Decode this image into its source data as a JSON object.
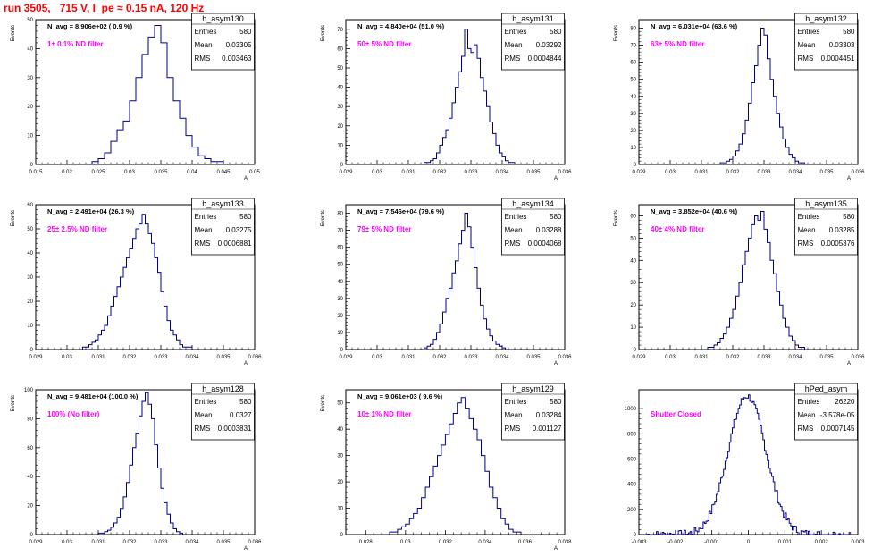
{
  "page_title": "run 3505,   715 V, I_pe ≈ 0.15 nA, 120 Hz",
  "colors": {
    "hist": "#00008b",
    "note": "#ff00ff",
    "title": "#ff0000",
    "axis": "#000000"
  },
  "stats_labels": {
    "entries": "Entries",
    "mean": "Mean",
    "rms": "RMS"
  },
  "chart_data": [
    {
      "type": "histogram",
      "title": "h_asym130",
      "header": "N_avg = 8.906e+02 ( 0.9 %)",
      "note": "1± 0.1% ND filter",
      "ylabel": "Events",
      "xlabel": "A",
      "xlim": [
        0.015,
        0.05
      ],
      "ylim": [
        0,
        50
      ],
      "xticks": [
        "0.015",
        "0.02",
        "0.025",
        "0.03",
        "0.035",
        "0.04",
        "0.045",
        "0.05"
      ],
      "yticks": [
        "0",
        "10",
        "20",
        "30",
        "40",
        "50"
      ],
      "stats": {
        "entries": "580",
        "mean": "0.03305",
        "rms": "0.003463"
      },
      "bins": [
        0.024,
        0.025,
        0.026,
        0.027,
        0.028,
        0.029,
        0.03,
        0.031,
        0.032,
        0.033,
        0.034,
        0.035,
        0.036,
        0.037,
        0.038,
        0.039,
        0.04,
        0.041,
        0.042,
        0.043,
        0.044,
        0.045
      ],
      "counts": [
        1,
        2,
        4,
        8,
        12,
        15,
        22,
        30,
        38,
        44,
        48,
        42,
        30,
        22,
        16,
        10,
        6,
        3,
        2,
        1,
        1
      ]
    },
    {
      "type": "histogram",
      "title": "h_asym131",
      "header": "N_avg = 4.840e+04 (51.0 %)",
      "note": "50± 5% ND filter",
      "ylabel": "Events",
      "xlabel": "A",
      "xlim": [
        0.029,
        0.036
      ],
      "ylim": [
        0,
        75
      ],
      "xticks": [
        "0.029",
        "0.03",
        "0.031",
        "0.032",
        "0.033",
        "0.034",
        "0.035",
        "0.036"
      ],
      "yticks": [
        "0",
        "10",
        "20",
        "30",
        "40",
        "50",
        "60",
        "70"
      ],
      "stats": {
        "entries": "580",
        "mean": "0.03292",
        "rms": "0.0004844"
      },
      "bins": [
        0.0315,
        0.0316,
        0.0317,
        0.0318,
        0.0319,
        0.032,
        0.0321,
        0.0322,
        0.0323,
        0.0324,
        0.0325,
        0.0326,
        0.0327,
        0.0328,
        0.0329,
        0.033,
        0.0331,
        0.0332,
        0.0333,
        0.0334,
        0.0335,
        0.0336,
        0.0337,
        0.0338,
        0.0339,
        0.034,
        0.0341,
        0.0342,
        0.0343,
        0.0344
      ],
      "counts": [
        1,
        1,
        2,
        3,
        6,
        10,
        14,
        18,
        24,
        32,
        40,
        48,
        56,
        70,
        60,
        58,
        62,
        55,
        45,
        38,
        30,
        22,
        16,
        10,
        6,
        4,
        2,
        1,
        1
      ]
    },
    {
      "type": "histogram",
      "title": "h_asym132",
      "header": "N_avg = 6.031e+04 (63.6 %)",
      "note": "63± 5% ND filter",
      "ylabel": "Events",
      "xlabel": "A",
      "xlim": [
        0.029,
        0.036
      ],
      "ylim": [
        0,
        85
      ],
      "xticks": [
        "0.029",
        "0.03",
        "0.031",
        "0.032",
        "0.033",
        "0.034",
        "0.035",
        "0.036"
      ],
      "yticks": [
        "0",
        "10",
        "20",
        "30",
        "40",
        "50",
        "60",
        "70",
        "80"
      ],
      "stats": {
        "entries": "580",
        "mean": "0.03303",
        "rms": "0.0004451"
      },
      "bins": [
        0.0316,
        0.0317,
        0.0318,
        0.0319,
        0.032,
        0.0321,
        0.0322,
        0.0323,
        0.0324,
        0.0325,
        0.0326,
        0.0327,
        0.0328,
        0.0329,
        0.033,
        0.0331,
        0.0332,
        0.0333,
        0.0334,
        0.0335,
        0.0336,
        0.0337,
        0.0338,
        0.0339,
        0.034,
        0.0341,
        0.0342,
        0.0343
      ],
      "counts": [
        1,
        1,
        2,
        3,
        5,
        8,
        12,
        18,
        26,
        36,
        48,
        58,
        70,
        80,
        76,
        62,
        50,
        40,
        30,
        22,
        15,
        10,
        6,
        4,
        2,
        1,
        1
      ]
    },
    {
      "type": "histogram",
      "title": "h_asym133",
      "header": "N_avg = 2.491e+04 (26.3 %)",
      "note": "25± 2.5% ND filter",
      "ylabel": "Events",
      "xlabel": "A",
      "xlim": [
        0.029,
        0.036
      ],
      "ylim": [
        0,
        60
      ],
      "xticks": [
        "0.029",
        "0.03",
        "0.031",
        "0.032",
        "0.033",
        "0.034",
        "0.035",
        "0.036"
      ],
      "yticks": [
        "0",
        "10",
        "20",
        "30",
        "40",
        "50",
        "60"
      ],
      "stats": {
        "entries": "580",
        "mean": "0.03275",
        "rms": "0.0006881"
      },
      "bins": [
        0.0305,
        0.0306,
        0.0307,
        0.0308,
        0.0309,
        0.031,
        0.0311,
        0.0312,
        0.0313,
        0.0314,
        0.0315,
        0.0316,
        0.0317,
        0.0318,
        0.0319,
        0.032,
        0.0321,
        0.0322,
        0.0323,
        0.0324,
        0.0325,
        0.0326,
        0.0327,
        0.0328,
        0.0329,
        0.033,
        0.0331,
        0.0332,
        0.0333,
        0.0334,
        0.0335,
        0.0336,
        0.0337,
        0.0338,
        0.0339,
        0.034
      ],
      "counts": [
        1,
        1,
        2,
        3,
        4,
        6,
        8,
        10,
        14,
        18,
        22,
        26,
        30,
        34,
        38,
        42,
        46,
        50,
        52,
        56,
        52,
        48,
        44,
        38,
        32,
        24,
        18,
        12,
        8,
        6,
        4,
        2,
        1,
        1,
        1
      ]
    },
    {
      "type": "histogram",
      "title": "h_asym134",
      "header": "N_avg = 7.546e+04 (79.6 %)",
      "note": "79± 5% ND filter",
      "ylabel": "Events",
      "xlabel": "A",
      "xlim": [
        0.029,
        0.036
      ],
      "ylim": [
        0,
        85
      ],
      "xticks": [
        "0.029",
        "0.03",
        "0.031",
        "0.032",
        "0.033",
        "0.034",
        "0.035",
        "0.036"
      ],
      "yticks": [
        "0",
        "10",
        "20",
        "30",
        "40",
        "50",
        "60",
        "70",
        "80"
      ],
      "stats": {
        "entries": "580",
        "mean": "0.03288",
        "rms": "0.0004068"
      },
      "bins": [
        0.0315,
        0.0316,
        0.0317,
        0.0318,
        0.0319,
        0.032,
        0.0321,
        0.0322,
        0.0323,
        0.0324,
        0.0325,
        0.0326,
        0.0327,
        0.0328,
        0.0329,
        0.033,
        0.0331,
        0.0332,
        0.0333,
        0.0334,
        0.0335,
        0.0336,
        0.0337,
        0.0338,
        0.0339,
        0.034,
        0.0341
      ],
      "counts": [
        1,
        2,
        3,
        6,
        10,
        15,
        22,
        30,
        36,
        45,
        52,
        62,
        70,
        80,
        72,
        60,
        48,
        36,
        26,
        18,
        12,
        8,
        5,
        3,
        2,
        1
      ]
    },
    {
      "type": "histogram",
      "title": "h_asym135",
      "header": "N_avg = 3.852e+04 (40.6 %)",
      "note": "40± 4% ND filter",
      "ylabel": "Events",
      "xlabel": "A",
      "xlim": [
        0.029,
        0.036
      ],
      "ylim": [
        0,
        65
      ],
      "xticks": [
        "0.029",
        "0.03",
        "0.031",
        "0.032",
        "0.033",
        "0.034",
        "0.035",
        "0.036"
      ],
      "yticks": [
        "0",
        "10",
        "20",
        "30",
        "40",
        "50",
        "60"
      ],
      "stats": {
        "entries": "580",
        "mean": "0.03285",
        "rms": "0.0005376"
      },
      "bins": [
        0.0312,
        0.0313,
        0.0314,
        0.0315,
        0.0316,
        0.0317,
        0.0318,
        0.0319,
        0.032,
        0.0321,
        0.0322,
        0.0323,
        0.0324,
        0.0325,
        0.0326,
        0.0327,
        0.0328,
        0.0329,
        0.033,
        0.0331,
        0.0332,
        0.0333,
        0.0334,
        0.0335,
        0.0336,
        0.0337,
        0.0338,
        0.0339,
        0.034,
        0.0341,
        0.0342,
        0.0343
      ],
      "counts": [
        1,
        1,
        2,
        3,
        5,
        7,
        10,
        14,
        18,
        24,
        30,
        38,
        44,
        50,
        56,
        60,
        58,
        62,
        54,
        48,
        40,
        34,
        26,
        20,
        14,
        10,
        6,
        4,
        2,
        1,
        1
      ]
    },
    {
      "type": "histogram",
      "title": "h_asym128",
      "header": "N_avg = 9.481e+04 (100.0 %)",
      "note": "100% (No filter)",
      "ylabel": "Events",
      "xlabel": "A",
      "xlim": [
        0.029,
        0.036
      ],
      "ylim": [
        0,
        100
      ],
      "xticks": [
        "0.029",
        "0.03",
        "0.031",
        "0.032",
        "0.033",
        "0.034",
        "0.035",
        "0.036"
      ],
      "yticks": [
        "0",
        "20",
        "40",
        "60",
        "80",
        "100"
      ],
      "stats": {
        "entries": "580",
        "mean": "0.0327",
        "rms": "0.0003831"
      },
      "bins": [
        0.031,
        0.0311,
        0.0312,
        0.0313,
        0.0314,
        0.0315,
        0.0316,
        0.0317,
        0.0318,
        0.0319,
        0.032,
        0.0321,
        0.0322,
        0.0323,
        0.0324,
        0.0325,
        0.0326,
        0.0327,
        0.0328,
        0.0329,
        0.033,
        0.0331,
        0.0332,
        0.0333,
        0.0334,
        0.0335,
        0.0336,
        0.0337
      ],
      "counts": [
        1,
        1,
        2,
        3,
        5,
        8,
        12,
        18,
        26,
        36,
        48,
        60,
        70,
        82,
        92,
        98,
        90,
        80,
        62,
        46,
        32,
        22,
        14,
        8,
        4,
        2,
        1
      ]
    },
    {
      "type": "histogram",
      "title": "h_asym129",
      "header": "N_avg = 9.061e+03 ( 9.6 %)",
      "note": "10± 1% ND filter",
      "ylabel": "Events",
      "xlabel": "A",
      "xlim": [
        0.027,
        0.038
      ],
      "ylim": [
        0,
        55
      ],
      "xticks": [
        "0.028",
        "0.03",
        "0.032",
        "0.034",
        "0.036",
        "0.038"
      ],
      "yticks": [
        "0",
        "10",
        "20",
        "30",
        "40",
        "50"
      ],
      "stats": {
        "entries": "580",
        "mean": "0.03284",
        "rms": "0.001127"
      },
      "bins": [
        0.0292,
        0.0294,
        0.0296,
        0.0298,
        0.03,
        0.0302,
        0.0304,
        0.0306,
        0.0308,
        0.031,
        0.0312,
        0.0314,
        0.0316,
        0.0318,
        0.032,
        0.0322,
        0.0324,
        0.0326,
        0.0328,
        0.033,
        0.0332,
        0.0334,
        0.0336,
        0.0338,
        0.034,
        0.0342,
        0.0344,
        0.0346,
        0.0348,
        0.035,
        0.0352,
        0.0354,
        0.0356,
        0.0358
      ],
      "counts": [
        1,
        1,
        2,
        3,
        4,
        6,
        8,
        10,
        14,
        18,
        22,
        26,
        30,
        34,
        38,
        42,
        46,
        50,
        52,
        48,
        44,
        40,
        36,
        30,
        24,
        18,
        14,
        10,
        6,
        4,
        2,
        1,
        1
      ]
    },
    {
      "type": "histogram",
      "title": "hPed_asym",
      "header": "",
      "note": "Shutter Closed",
      "ylabel": "",
      "xlabel": "",
      "xlim": [
        -0.003,
        0.003
      ],
      "ylim": [
        0,
        1150
      ],
      "xticks": [
        "-0.003",
        "-0.002",
        "-0.001",
        "0",
        "0.001",
        "0.002",
        "0.003"
      ],
      "yticks": [
        "0",
        "200",
        "400",
        "600",
        "800",
        "1000"
      ],
      "stats": {
        "entries": "26220",
        "mean": "-3.578e-05",
        "rms": "0.0007145"
      },
      "gauss": {
        "mean": -3.58e-05,
        "sigma": 0.00052,
        "peak": 1100,
        "width": 4e-05,
        "from": -0.0028,
        "to": 0.0028
      }
    }
  ]
}
